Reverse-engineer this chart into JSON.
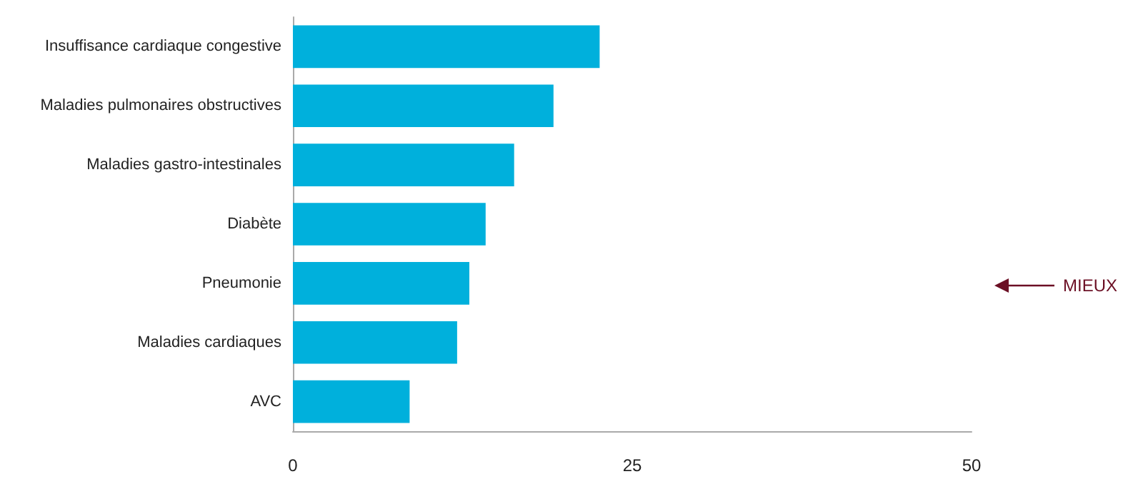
{
  "chart_data": {
    "type": "bar",
    "orientation": "horizontal",
    "categories": [
      "Insuffisance cardiaque congestive",
      "Maladies pulmonaires obstructives",
      "Maladies gastro-intestinales",
      "Diabète",
      "Pneumonie",
      "Maladies cardiaques",
      "AVC"
    ],
    "values": [
      22.6,
      19.2,
      16.3,
      14.2,
      13.0,
      12.1,
      8.6
    ],
    "color": "#00b0dc",
    "xlim": [
      0,
      50
    ],
    "xticks": [
      0,
      25,
      50
    ],
    "annotations": [
      "MIEUX"
    ]
  }
}
